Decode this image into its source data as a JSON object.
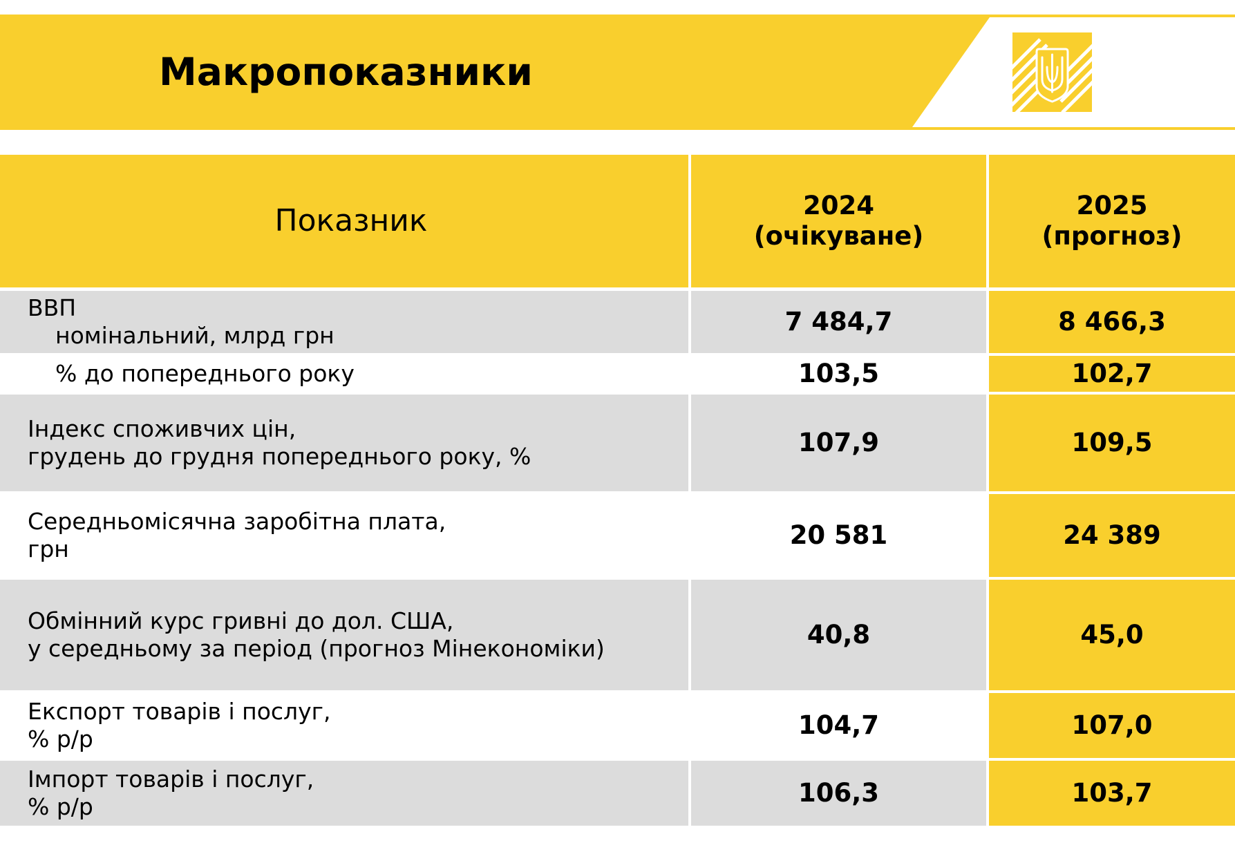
{
  "header": {
    "title": "Макропоказники",
    "emblem_icon": "ukraine-trident-icon",
    "accent_color": "#F9CF2D"
  },
  "table": {
    "columns": {
      "indicator": "Показник",
      "col_2024": [
        "2024",
        "(очікуване)"
      ],
      "col_2025": [
        "2025",
        "(прогноз)"
      ]
    },
    "rows": [
      {
        "label": [
          "ВВП",
          "номінальний, млрд грн"
        ],
        "v2024": "7 484,7",
        "v2025": "8 466,3"
      },
      {
        "label": [
          "% до попереднього року"
        ],
        "v2024": "103,5",
        "v2025": "102,7"
      },
      {
        "label": [
          "Індекс споживчих цін,",
          "грудень до грудня попереднього року, %"
        ],
        "v2024": "107,9",
        "v2025": "109,5"
      },
      {
        "label": [
          "Середньомісячна заробітна плата,",
          "грн"
        ],
        "v2024": "20 581",
        "v2025": "24 389"
      },
      {
        "label": [
          "Обмінний курс гривні до дол. США,",
          "у середньому за період (прогноз Мінекономіки)"
        ],
        "v2024": "40,8",
        "v2025": "45,0"
      },
      {
        "label": [
          "Експорт товарів і послуг,",
          "% р/р"
        ],
        "v2024": "104,7",
        "v2025": "107,0"
      },
      {
        "label": [
          "Імпорт товарів і послуг,",
          "% р/р"
        ],
        "v2024": "106,3",
        "v2025": "103,7"
      }
    ]
  }
}
